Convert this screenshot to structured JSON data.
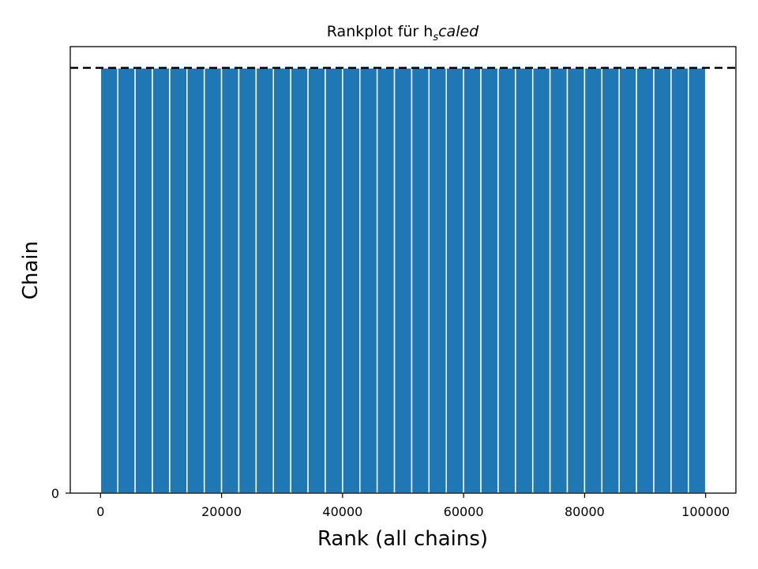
{
  "chart_data": {
    "type": "bar",
    "title": "Rankplot für h",
    "title_sub": "s",
    "title_suffix": "caled",
    "xlabel": "Rank (all chains)",
    "ylabel": "Chain",
    "xlim": [
      -5000,
      105000
    ],
    "xticks": [
      0,
      20000,
      40000,
      60000,
      80000,
      100000
    ],
    "xtick_labels": [
      "0",
      "20000",
      "40000",
      "60000",
      "80000",
      "100000"
    ],
    "yticks": [
      0
    ],
    "ytick_labels": [
      "0"
    ],
    "bin_width": 2857,
    "bin_starts": [
      0,
      2857,
      5714,
      8571,
      11429,
      14286,
      17143,
      20000,
      22857,
      25714,
      28571,
      31429,
      34286,
      37143,
      40000,
      42857,
      45714,
      48571,
      51429,
      54286,
      57143,
      60000,
      62857,
      65714,
      68571,
      71429,
      74286,
      77143,
      80000,
      82857,
      85714,
      88571,
      91429,
      94286,
      97143
    ],
    "bar_height": 1.0,
    "reference_line": 1.0,
    "ylim": [
      0,
      1.05
    ],
    "grid": false,
    "colors": {
      "bar": "#1f77b4",
      "bar_edge": "#ffffff",
      "reference_line": "#000000"
    }
  }
}
